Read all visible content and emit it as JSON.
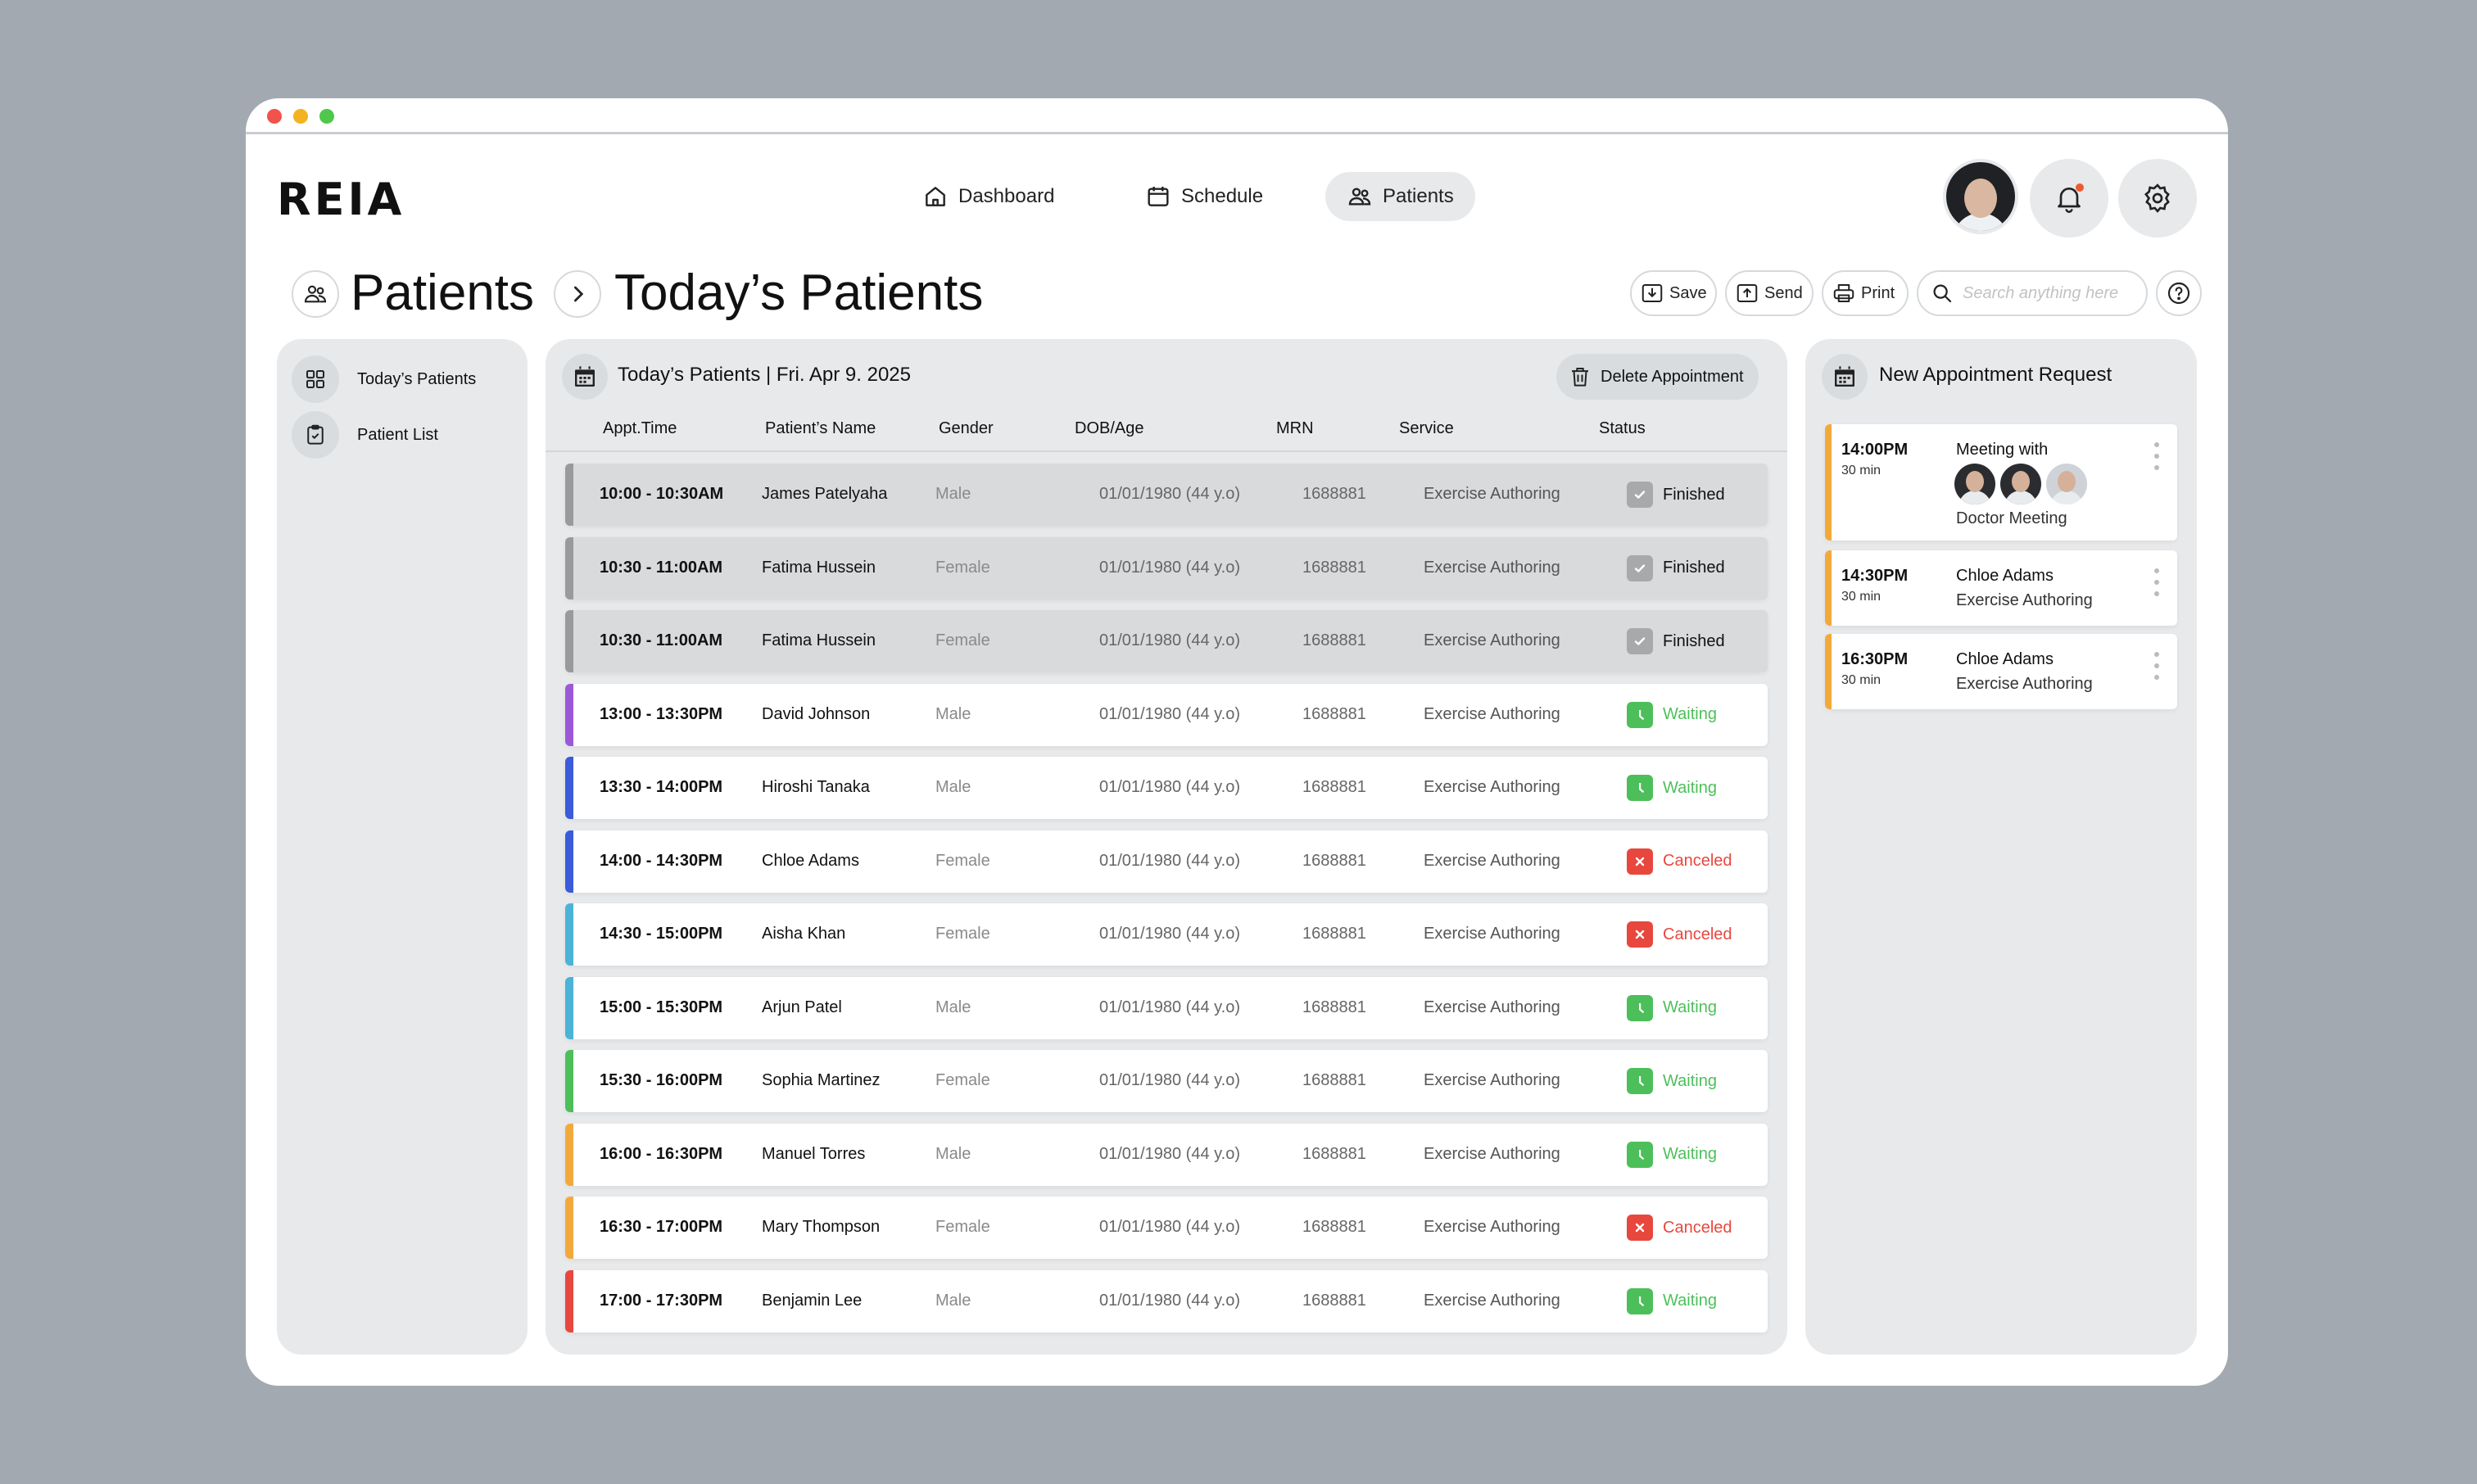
{
  "app": {
    "logo": "REIA",
    "nav": [
      {
        "label": "Dashboard",
        "icon": "home-icon"
      },
      {
        "label": "Schedule",
        "icon": "calendar-icon"
      },
      {
        "label": "Patients",
        "icon": "people-icon",
        "active": true
      }
    ]
  },
  "breadcrumb": {
    "root": "Patients",
    "current": "Today’s Patients"
  },
  "toolbar": {
    "save_label": "Save",
    "send_label": "Send",
    "print_label": "Print",
    "search_placeholder": "Search anything here"
  },
  "sidebar": {
    "items": [
      {
        "label": "Today’s Patients",
        "icon": "grid-icon"
      },
      {
        "label": "Patient List",
        "icon": "clipboard-icon"
      }
    ]
  },
  "main": {
    "title": "Today’s Patients  |  Fri. Apr 9. 2025",
    "delete_label": "Delete Appointment",
    "columns": [
      "Appt.Time",
      "Patient’s Name",
      "Gender",
      "DOB/Age",
      "MRN",
      "Service",
      "Status"
    ],
    "rows": [
      {
        "time": "10:00 - 10:30AM",
        "name": "James Patelyaha",
        "gender": "Male",
        "dob": "01/01/1980 (44 y.o)",
        "mrn": "1688881",
        "service": "Exercise Authoring",
        "status": "Finished",
        "accent": "#9a9a9a"
      },
      {
        "time": "10:30 - 11:00AM",
        "name": "Fatima Hussein",
        "gender": "Female",
        "dob": "01/01/1980 (44 y.o)",
        "mrn": "1688881",
        "service": "Exercise Authoring",
        "status": "Finished",
        "accent": "#9a9a9a"
      },
      {
        "time": "10:30 - 11:00AM",
        "name": "Fatima Hussein",
        "gender": "Female",
        "dob": "01/01/1980 (44 y.o)",
        "mrn": "1688881",
        "service": "Exercise Authoring",
        "status": "Finished",
        "accent": "#9a9a9a"
      },
      {
        "time": "13:00 - 13:30PM",
        "name": "David Johnson",
        "gender": "Male",
        "dob": "01/01/1980 (44 y.o)",
        "mrn": "1688881",
        "service": "Exercise Authoring",
        "status": "Waiting",
        "accent": "#9b59d8"
      },
      {
        "time": "13:30 - 14:00PM",
        "name": "Hiroshi Tanaka",
        "gender": "Male",
        "dob": "01/01/1980 (44 y.o)",
        "mrn": "1688881",
        "service": "Exercise Authoring",
        "status": "Waiting",
        "accent": "#3b5bd9"
      },
      {
        "time": "14:00 - 14:30PM",
        "name": "Chloe Adams",
        "gender": "Female",
        "dob": "01/01/1980 (44 y.o)",
        "mrn": "1688881",
        "service": "Exercise Authoring",
        "status": "Canceled",
        "accent": "#3b5bd9"
      },
      {
        "time": "14:30 - 15:00PM",
        "name": "Aisha Khan",
        "gender": "Female",
        "dob": "01/01/1980 (44 y.o)",
        "mrn": "1688881",
        "service": "Exercise Authoring",
        "status": "Canceled",
        "accent": "#4ab3d6"
      },
      {
        "time": "15:00 - 15:30PM",
        "name": "Arjun Patel",
        "gender": "Male",
        "dob": "01/01/1980 (44 y.o)",
        "mrn": "1688881",
        "service": "Exercise Authoring",
        "status": "Waiting",
        "accent": "#4ab3d6"
      },
      {
        "time": "15:30 - 16:00PM",
        "name": "Sophia Martinez",
        "gender": "Female",
        "dob": "01/01/1980 (44 y.o)",
        "mrn": "1688881",
        "service": "Exercise Authoring",
        "status": "Waiting",
        "accent": "#4cbf5a"
      },
      {
        "time": "16:00 - 16:30PM",
        "name": "Manuel Torres",
        "gender": "Male",
        "dob": "01/01/1980 (44 y.o)",
        "mrn": "1688881",
        "service": "Exercise Authoring",
        "status": "Waiting",
        "accent": "#f2a93b"
      },
      {
        "time": "16:30 - 17:00PM",
        "name": "Mary Thompson",
        "gender": "Female",
        "dob": "01/01/1980 (44 y.o)",
        "mrn": "1688881",
        "service": "Exercise Authoring",
        "status": "Canceled",
        "accent": "#f2a93b"
      },
      {
        "time": "17:00 - 17:30PM",
        "name": "Benjamin Lee",
        "gender": "Male",
        "dob": "01/01/1980 (44 y.o)",
        "mrn": "1688881",
        "service": "Exercise Authoring",
        "status": "Waiting",
        "accent": "#e8473e"
      }
    ]
  },
  "status_colors": {
    "Finished": "#9a9a9a",
    "Waiting": "#4cbf5a",
    "Canceled": "#e8473e"
  },
  "requests": {
    "title": "New Appointment Request",
    "items": [
      {
        "time": "14:00PM",
        "duration": "30 min",
        "title": "Meeting with",
        "subtitle": "Doctor Meeting"
      },
      {
        "time": "14:30PM",
        "duration": "30 min",
        "title": "Chloe Adams",
        "subtitle": "Exercise Authoring"
      },
      {
        "time": "16:30PM",
        "duration": "30 min",
        "title": "Chloe Adams",
        "subtitle": "Exercise Authoring"
      }
    ]
  }
}
